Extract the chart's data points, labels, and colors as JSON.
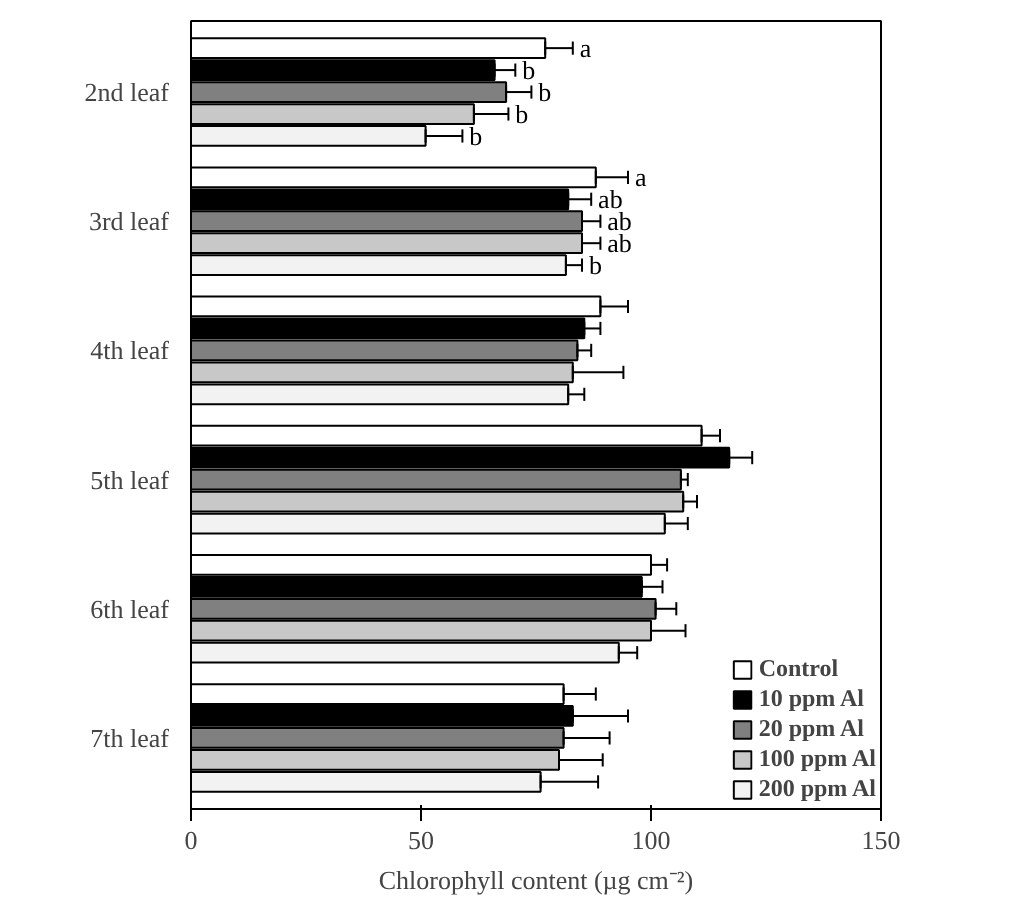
{
  "chart_data": {
    "type": "bar",
    "orientation": "horizontal",
    "xlabel": "Chlorophyll content (µg cm⁻²)",
    "categories": [
      "2nd leaf",
      "3rd leaf",
      "4th leaf",
      "5th leaf",
      "6th leaf",
      "7th leaf"
    ],
    "series": [
      {
        "name": "Control",
        "color": "#ffffff",
        "values": [
          77,
          88,
          89,
          111,
          100,
          81
        ],
        "errors": [
          [
            77,
            83
          ],
          [
            88,
            95
          ],
          [
            89,
            95
          ],
          [
            111,
            115
          ],
          [
            100,
            103.5
          ],
          [
            81,
            88
          ]
        ],
        "value_labels": [
          "a",
          "a",
          null,
          null,
          null,
          null
        ]
      },
      {
        "name": "10 ppm Al",
        "color": "#000000",
        "values": [
          66,
          82,
          85.5,
          117,
          98,
          83
        ],
        "errors": [
          [
            66,
            70.5
          ],
          [
            82,
            87
          ],
          [
            85.5,
            89
          ],
          [
            117,
            122
          ],
          [
            98,
            102.5
          ],
          [
            83,
            95
          ]
        ],
        "value_labels": [
          "b",
          "ab",
          null,
          null,
          null,
          null
        ]
      },
      {
        "name": "20 ppm Al",
        "color": "#808080",
        "values": [
          68.5,
          85,
          84,
          106.5,
          101,
          81
        ],
        "errors": [
          [
            68.5,
            74
          ],
          [
            85,
            89
          ],
          [
            84,
            87
          ],
          [
            106.5,
            108
          ],
          [
            101,
            105.5
          ],
          [
            81,
            91
          ]
        ],
        "value_labels": [
          "b",
          "ab",
          null,
          null,
          null,
          null
        ]
      },
      {
        "name": "100 ppm Al",
        "color": "#c8c8c8",
        "values": [
          61.5,
          85,
          83,
          107,
          100,
          80
        ],
        "errors": [
          [
            61.5,
            69
          ],
          [
            85,
            89
          ],
          [
            83,
            94
          ],
          [
            107,
            110
          ],
          [
            100,
            107.5
          ],
          [
            80,
            89.5
          ]
        ],
        "value_labels": [
          "b",
          "ab",
          null,
          null,
          null,
          null
        ]
      },
      {
        "name": "200 ppm Al",
        "color": "#f2f2f2",
        "values": [
          51,
          81.5,
          82,
          103,
          93,
          76
        ],
        "errors": [
          [
            51,
            59
          ],
          [
            81.5,
            85
          ],
          [
            82,
            85.5
          ],
          [
            103,
            108
          ],
          [
            93,
            97
          ],
          [
            76,
            88.5
          ]
        ],
        "value_labels": [
          "b",
          "b",
          null,
          null,
          null,
          null
        ]
      }
    ],
    "xlim": [
      0,
      150
    ],
    "xticks": [
      0,
      50,
      100,
      150
    ],
    "grid": false,
    "legend": "bottom right"
  }
}
